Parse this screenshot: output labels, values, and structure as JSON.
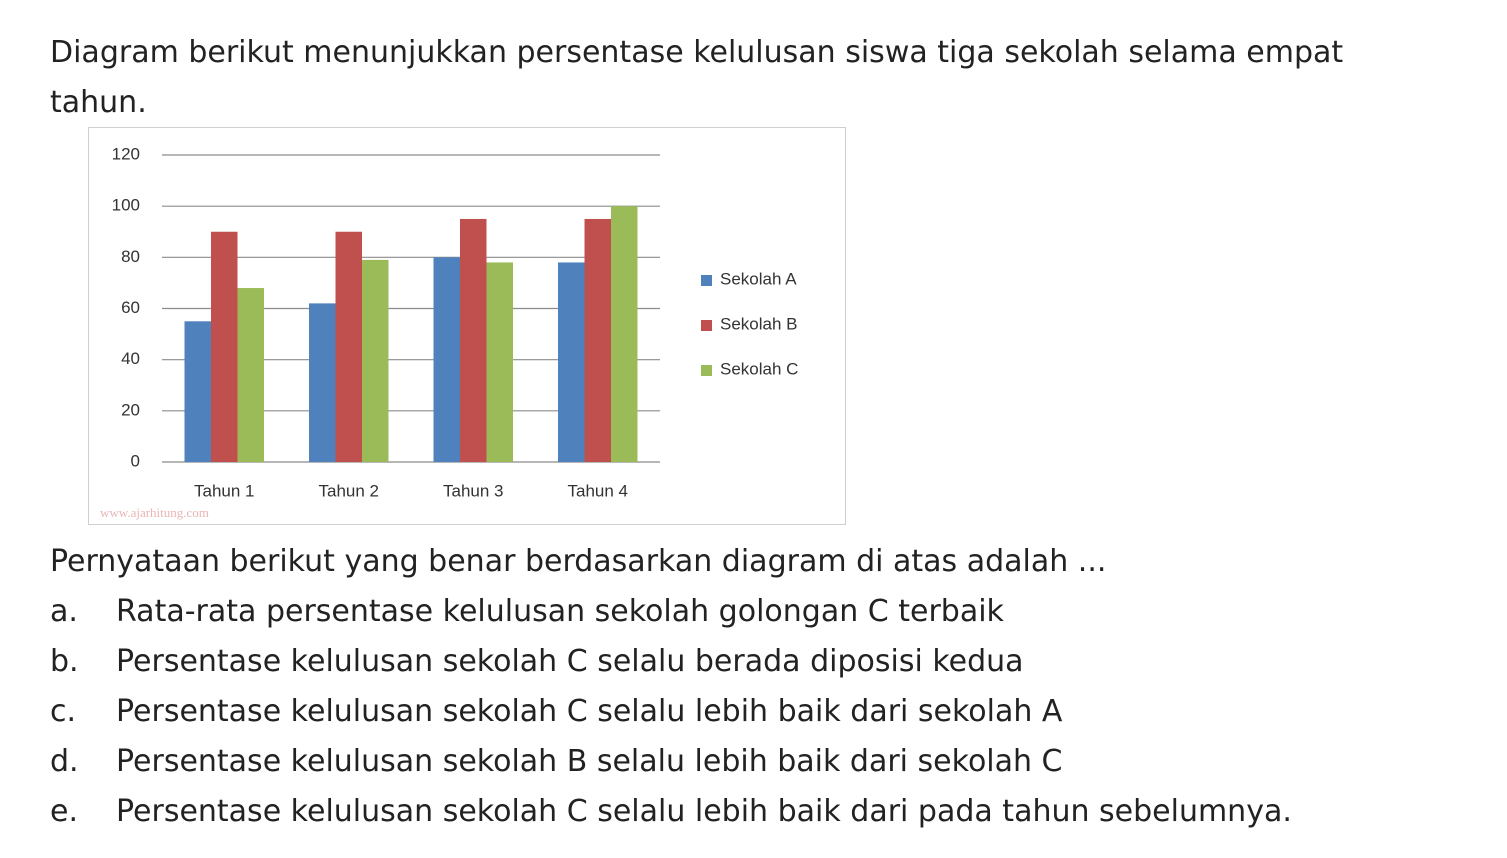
{
  "question": "Diagram berikut menunjukkan persentase kelulusan siswa tiga sekolah selama empat tahun.",
  "chart_data": {
    "type": "bar",
    "categories": [
      "Tahun 1",
      "Tahun 2",
      "Tahun 3",
      "Tahun 4"
    ],
    "series": [
      {
        "name": "Sekolah A",
        "color": "#4f81bd",
        "values": [
          55,
          62,
          80,
          78
        ]
      },
      {
        "name": "Sekolah B",
        "color": "#c0504d",
        "values": [
          90,
          90,
          95,
          95
        ]
      },
      {
        "name": "Sekolah C",
        "color": "#9bbb59",
        "values": [
          68,
          79,
          78,
          100
        ]
      }
    ],
    "ylim": [
      0,
      120
    ],
    "yticks": [
      0,
      20,
      40,
      60,
      80,
      100,
      120
    ],
    "grid": true,
    "legend": "right",
    "watermark": "www.ajarhitung.com"
  },
  "prompt": "Pernyataan berikut yang benar berdasarkan diagram di atas adalah ...",
  "options": [
    {
      "letter": "a.",
      "text": "Rata-rata persentase kelulusan sekolah golongan C terbaik"
    },
    {
      "letter": "b.",
      "text": "Persentase kelulusan sekolah C selalu berada diposisi kedua"
    },
    {
      "letter": "c.",
      "text": "Persentase kelulusan sekolah C selalu lebih baik dari sekolah A"
    },
    {
      "letter": "d.",
      "text": "Persentase kelulusan sekolah B selalu lebih baik dari sekolah C"
    },
    {
      "letter": "e.",
      "text": "Persentase kelulusan sekolah C selalu lebih baik dari pada tahun sebelumnya."
    }
  ]
}
